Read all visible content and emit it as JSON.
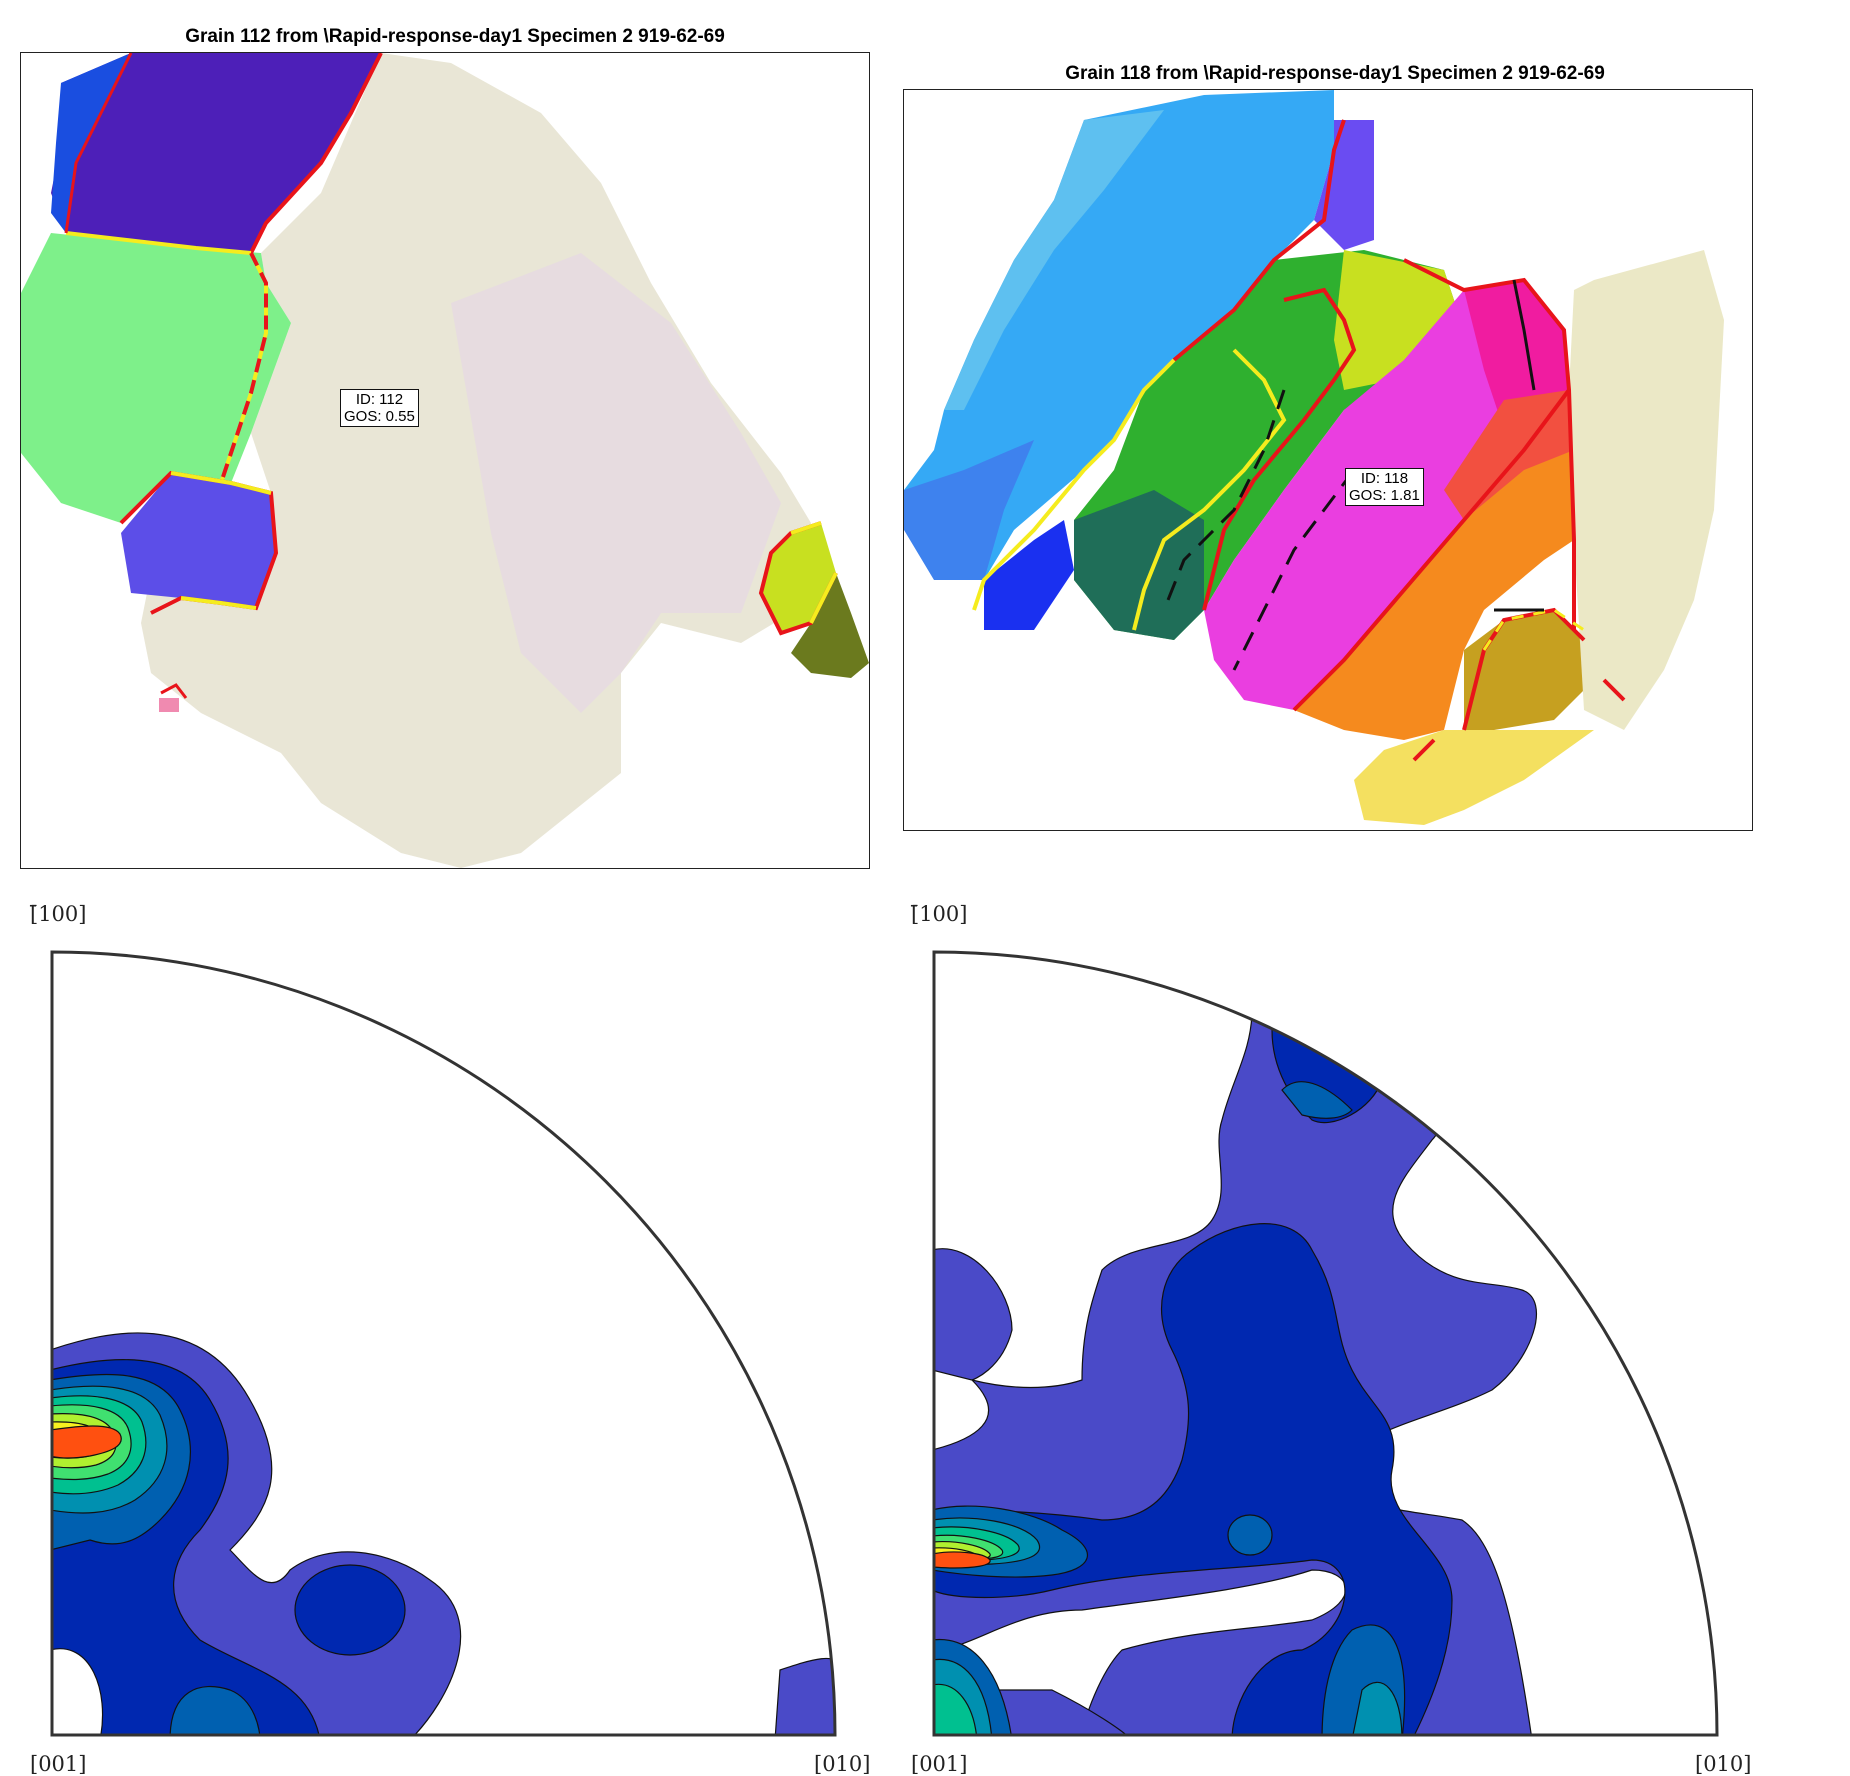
{
  "maps": [
    {
      "title": "Grain 112 from \\Rapid-response-day1 Specimen 2 919-62-69",
      "tip_id": "ID: 112",
      "tip_gos": "GOS: 0.55"
    },
    {
      "title": "Grain 118 from \\Rapid-response-day1 Specimen 2 919-62-69",
      "tip_id": "ID: 118",
      "tip_gos": "GOS: 1.81"
    }
  ],
  "pole_figures": [
    {
      "top_label": "[̄100]",
      "left_label": "[001]",
      "right_label": "[010]"
    },
    {
      "top_label": "[̄100]",
      "left_label": "[001]",
      "right_label": "[010]"
    }
  ],
  "colors": {
    "boundary_high": "#e8141a",
    "boundary_twin": "#f5ec1e",
    "boundary_low": "#111111",
    "contour_levels": [
      "#4a4ac8",
      "#0028b0",
      "#0060b0",
      "#0090b0",
      "#00c090",
      "#40e070",
      "#b0f030",
      "#f8f020",
      "#ff5010"
    ]
  }
}
